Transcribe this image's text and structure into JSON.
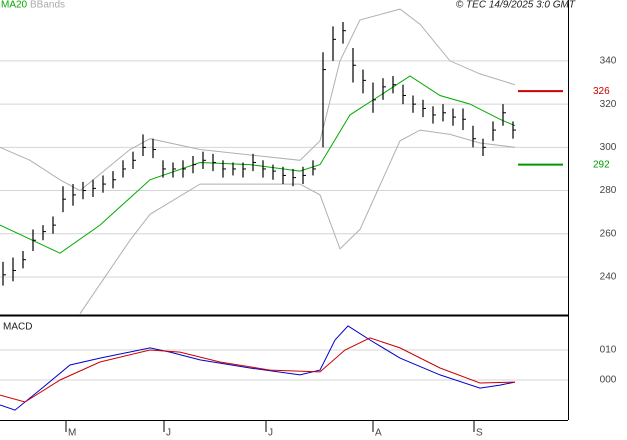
{
  "chart_data": [
    {
      "type": "ohlc",
      "legend": [
        "MA20",
        "BBands"
      ],
      "credit": "© TEC 14/9/2025 3:0 GMT",
      "close": [
        241,
        243,
        248,
        257,
        261,
        264,
        276,
        278,
        280,
        281,
        283,
        285,
        290,
        294,
        300,
        299,
        290,
        290,
        290,
        292,
        294,
        293,
        290,
        290,
        290,
        293,
        290,
        289,
        287,
        286,
        287,
        290,
        336,
        350,
        354,
        338,
        331,
        322,
        328,
        329,
        324,
        320,
        318,
        315,
        316,
        314,
        313,
        304,
        300,
        308,
        316,
        308
      ],
      "high": [
        247,
        249,
        252,
        262,
        264,
        268,
        282,
        283,
        284,
        285,
        287,
        289,
        294,
        298,
        306,
        304,
        294,
        293,
        294,
        296,
        298,
        297,
        294,
        293,
        293,
        297,
        294,
        292,
        291,
        290,
        291,
        294,
        344,
        356,
        358,
        346,
        336,
        330,
        332,
        333,
        329,
        324,
        322,
        319,
        320,
        318,
        318,
        310,
        304,
        312,
        320,
        312
      ],
      "low": [
        236,
        238,
        244,
        252,
        257,
        260,
        270,
        273,
        276,
        277,
        279,
        281,
        286,
        290,
        296,
        295,
        286,
        286,
        286,
        288,
        290,
        289,
        286,
        287,
        286,
        289,
        286,
        285,
        283,
        282,
        283,
        287,
        300,
        340,
        348,
        330,
        325,
        316,
        322,
        325,
        320,
        316,
        314,
        311,
        312,
        310,
        308,
        300,
        296,
        303,
        310,
        304
      ],
      "bar_color": "#000000",
      "ma": {
        "color": "#00aa00",
        "x": [
          -0.3,
          5.7,
          9.7,
          14.7,
          19.7,
          24.7,
          29.7,
          31.7,
          34.7,
          37.7,
          40.7,
          43.7,
          46.7,
          49.7,
          51.2
        ],
        "values": [
          264,
          251,
          264,
          285,
          293,
          292,
          289,
          292,
          315,
          324,
          333,
          324,
          320,
          313,
          310
        ]
      },
      "bands": {
        "color": "#b0b0b0",
        "x": [
          -0.3,
          2.7,
          5.7,
          7.7,
          12.7,
          14.7,
          19.7,
          25.7,
          29.7,
          31.7,
          33.7,
          35.7,
          39.7,
          41.7,
          44.7,
          47.7,
          51.2
        ],
        "upper": [
          300,
          294,
          285,
          280,
          299,
          304,
          299,
          296,
          294,
          303,
          340,
          359,
          364,
          357,
          340,
          334,
          329
        ],
        "lower": [
          null,
          null,
          null,
          223,
          257,
          269,
          283,
          283,
          283,
          278,
          253,
          262,
          303,
          308,
          306,
          302,
          300
        ]
      },
      "levels": [
        {
          "value": 326,
          "color": "#cc0000"
        },
        {
          "value": 292,
          "color": "#009900"
        }
      ],
      "xlim": [
        -0.3,
        56.5
      ],
      "ylim": [
        222.4,
        368.2
      ],
      "yticks": [
        240,
        260,
        280,
        300,
        320,
        340
      ],
      "grid": true,
      "xticks": [
        {
          "value": 6.3,
          "label": "M"
        },
        {
          "value": 16.1,
          "label": "J"
        },
        {
          "value": 26.3,
          "label": "J"
        },
        {
          "value": 37,
          "label": "A"
        },
        {
          "value": 47.1,
          "label": "S"
        }
      ]
    },
    {
      "type": "line",
      "title": "MACD",
      "ylim": [
        -13.3,
        21.3
      ],
      "yticks": [
        {
          "value": 10,
          "label": "010"
        },
        {
          "value": 0,
          "label": "000"
        }
      ],
      "grid": true,
      "series": [
        {
          "color": "#0000cc",
          "x": [
            -0.3,
            1.2,
            3.7,
            6.7,
            9.7,
            14.7,
            16.7,
            19.7,
            24.7,
            29.7,
            31.7,
            33.2,
            34.5,
            36.7,
            39.7,
            43.7,
            47.7,
            49.7,
            51.2
          ],
          "values": [
            -8.3,
            -10,
            -3.3,
            5,
            7.3,
            10.7,
            9.3,
            6.7,
            4,
            1.7,
            3.3,
            13.3,
            18,
            13.3,
            7.3,
            1.7,
            -2.7,
            -1.7,
            -0.7
          ]
        },
        {
          "color": "#cc0000",
          "x": [
            -0.3,
            2.2,
            5.7,
            9.7,
            14.7,
            17.7,
            21.7,
            26.7,
            31.7,
            34.2,
            36.7,
            39.7,
            43.7,
            47.7,
            51.2
          ],
          "values": [
            -5,
            -7.3,
            0,
            6,
            10,
            9.3,
            6,
            3.3,
            2.7,
            10,
            14,
            10.7,
            4,
            -1,
            -0.7
          ]
        }
      ]
    }
  ]
}
